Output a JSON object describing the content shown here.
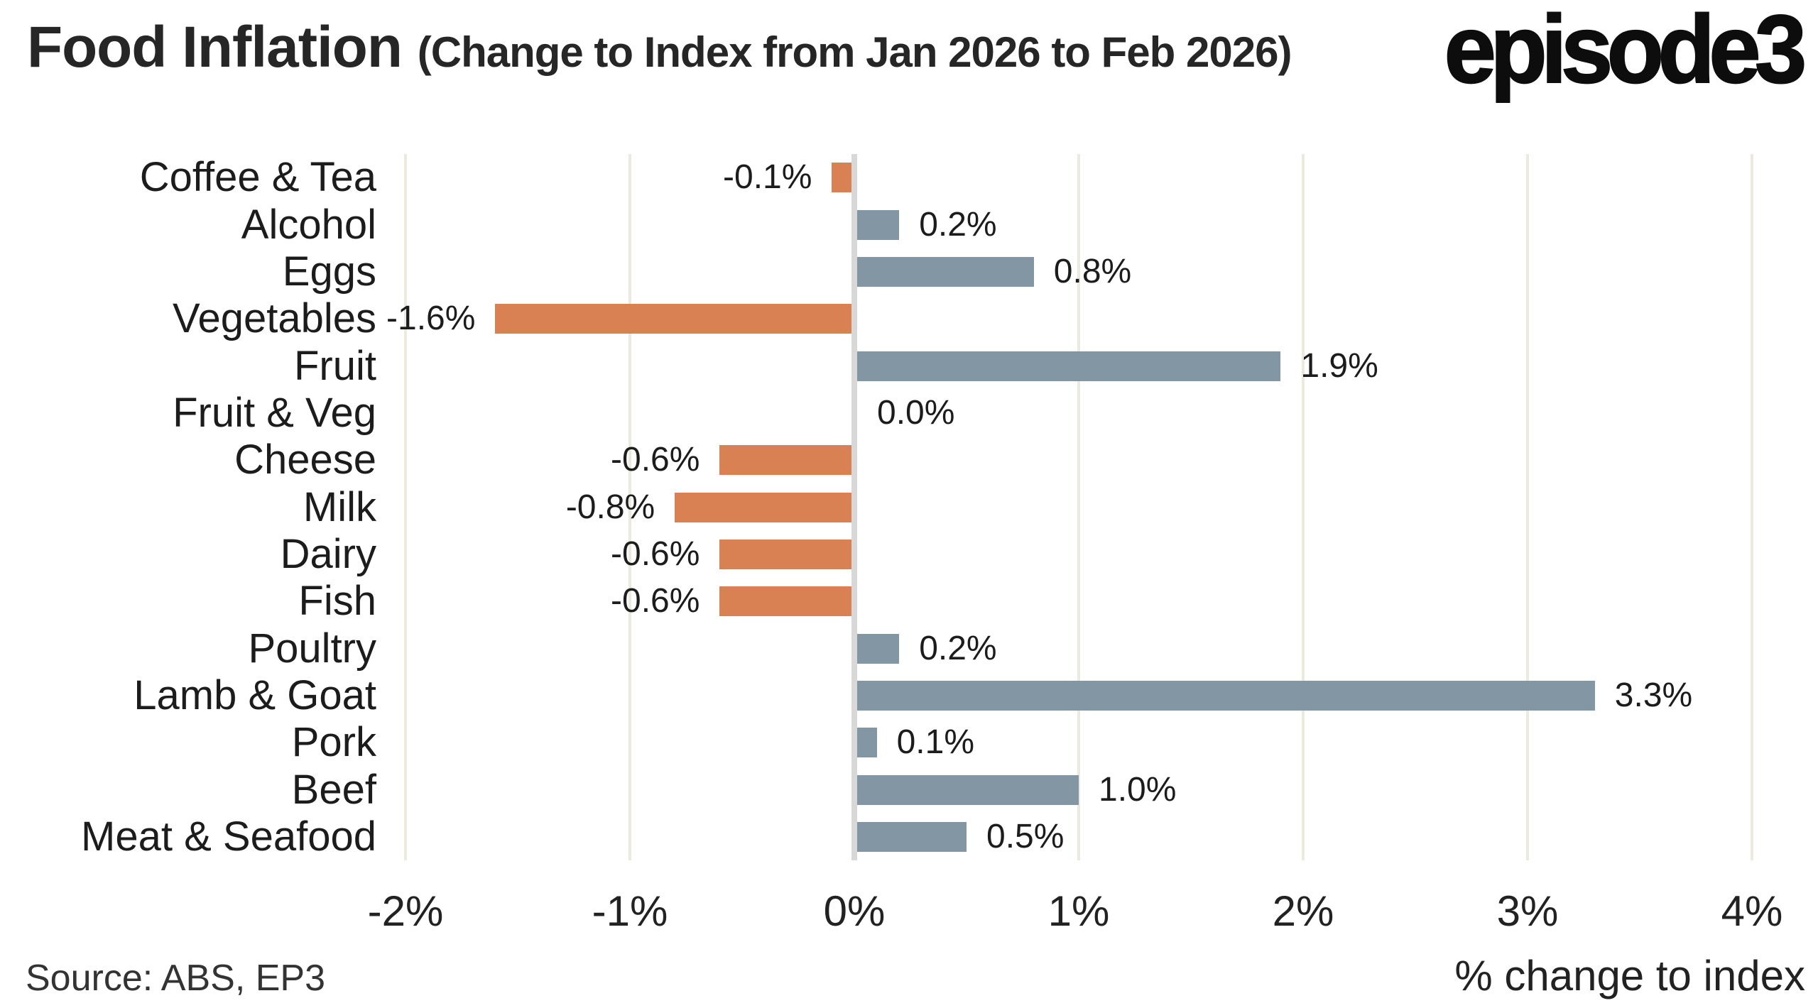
{
  "title": {
    "main": "Food Inflation ",
    "sub": "(Change to Index from Jan 2026 to Feb 2026)"
  },
  "logo": "episode3",
  "source": "Source: ABS, EP3",
  "chart_data": {
    "type": "bar",
    "orientation": "horizontal",
    "title": "Food Inflation (Change to Index from Jan 2026 to Feb 2026)",
    "xlabel": "% change to index",
    "ylabel": "",
    "xlim": [
      -2,
      4
    ],
    "grid": true,
    "categories": [
      "Coffee & Tea",
      "Alcohol",
      "Eggs",
      "Vegetables",
      "Fruit",
      "Fruit & Veg",
      "Cheese",
      "Milk",
      "Dairy",
      "Fish",
      "Poultry",
      "Lamb & Goat",
      "Pork",
      "Beef",
      "Meat & Seafood"
    ],
    "values": [
      -0.1,
      0.2,
      0.8,
      -1.6,
      1.9,
      0.0,
      -0.6,
      -0.8,
      -0.6,
      -0.6,
      0.2,
      3.3,
      0.1,
      1.0,
      0.5
    ],
    "value_labels": [
      "-0.1%",
      "0.2%",
      "0.8%",
      "-1.6%",
      "1.9%",
      "0.0%",
      "-0.6%",
      "-0.8%",
      "-0.6%",
      "-0.6%",
      "0.2%",
      "3.3%",
      "0.1%",
      "1.0%",
      "0.5%"
    ],
    "x_ticks": [
      {
        "value": -2,
        "label": "-2%"
      },
      {
        "value": -1,
        "label": "-1%"
      },
      {
        "value": 0,
        "label": "0%"
      },
      {
        "value": 1,
        "label": "1%"
      },
      {
        "value": 2,
        "label": "2%"
      },
      {
        "value": 3,
        "label": "3%"
      },
      {
        "value": 4,
        "label": "4%"
      }
    ],
    "colors": {
      "positive_bar": "#8396a4",
      "negative_bar": "#d98153",
      "gridline": "#ece9e1",
      "zero_line": "#d8d8d6",
      "text": "#1c1c1c"
    }
  }
}
